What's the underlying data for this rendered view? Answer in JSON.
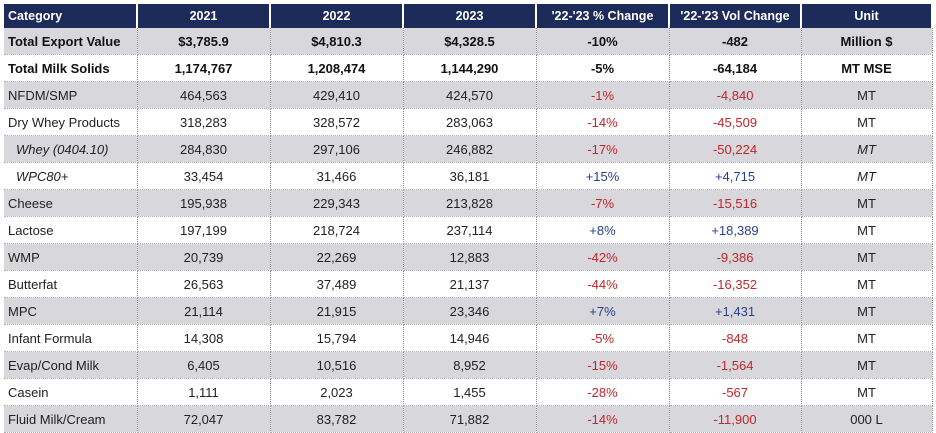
{
  "table": {
    "headers": [
      "Category",
      "2021",
      "2022",
      "2023",
      "'22-'23 % Change",
      "'22-'23 Vol Change",
      "Unit"
    ],
    "rows": [
      {
        "cat": "Total Export Value",
        "y2021": "$3,785.9",
        "y2022": "$4,810.3",
        "y2023": "$4,328.5",
        "pct": "-10%",
        "vol": "-482",
        "unit": "Million $"
      },
      {
        "cat": "Total Milk Solids",
        "y2021": "1,174,767",
        "y2022": "1,208,474",
        "y2023": "1,144,290",
        "pct": "-5%",
        "vol": "-64,184",
        "unit": "MT MSE"
      },
      {
        "cat": "NFDM/SMP",
        "y2021": "464,563",
        "y2022": "429,410",
        "y2023": "424,570",
        "pct": "-1%",
        "vol": "-4,840",
        "unit": "MT"
      },
      {
        "cat": "Dry Whey Products",
        "y2021": "318,283",
        "y2022": "328,572",
        "y2023": "283,063",
        "pct": "-14%",
        "vol": "-45,509",
        "unit": "MT"
      },
      {
        "cat": "Whey (0404.10)",
        "y2021": "284,830",
        "y2022": "297,106",
        "y2023": "246,882",
        "pct": "-17%",
        "vol": "-50,224",
        "unit": "MT"
      },
      {
        "cat": "WPC80+",
        "y2021": "33,454",
        "y2022": "31,466",
        "y2023": "36,181",
        "pct": "+15%",
        "vol": "+4,715",
        "unit": "MT"
      },
      {
        "cat": "Cheese",
        "y2021": "195,938",
        "y2022": "229,343",
        "y2023": "213,828",
        "pct": "-7%",
        "vol": "-15,516",
        "unit": "MT"
      },
      {
        "cat": "Lactose",
        "y2021": "197,199",
        "y2022": "218,724",
        "y2023": "237,114",
        "pct": "+8%",
        "vol": "+18,389",
        "unit": "MT"
      },
      {
        "cat": "WMP",
        "y2021": "20,739",
        "y2022": "22,269",
        "y2023": "12,883",
        "pct": "-42%",
        "vol": "-9,386",
        "unit": "MT"
      },
      {
        "cat": "Butterfat",
        "y2021": "26,563",
        "y2022": "37,489",
        "y2023": "21,137",
        "pct": "-44%",
        "vol": "-16,352",
        "unit": "MT"
      },
      {
        "cat": "MPC",
        "y2021": "21,114",
        "y2022": "21,915",
        "y2023": "23,346",
        "pct": "+7%",
        "vol": "+1,431",
        "unit": "MT"
      },
      {
        "cat": "Infant Formula",
        "y2021": "14,308",
        "y2022": "15,794",
        "y2023": "14,946",
        "pct": "-5%",
        "vol": "-848",
        "unit": "MT"
      },
      {
        "cat": "Evap/Cond Milk",
        "y2021": "6,405",
        "y2022": "10,516",
        "y2023": "8,952",
        "pct": "-15%",
        "vol": "-1,564",
        "unit": "MT"
      },
      {
        "cat": "Casein",
        "y2021": "1,111",
        "y2022": "2,023",
        "y2023": "1,455",
        "pct": "-28%",
        "vol": "-567",
        "unit": "MT"
      },
      {
        "cat": "Fluid Milk/Cream",
        "y2021": "72,047",
        "y2022": "83,782",
        "y2023": "71,882",
        "pct": "-14%",
        "vol": "-11,900",
        "unit": "000 L"
      }
    ]
  },
  "colors": {
    "header_bg": "#1d2b5b",
    "stripe": "#d8d8dc",
    "negative": "#c0262c",
    "positive": "#2b3e8c"
  }
}
